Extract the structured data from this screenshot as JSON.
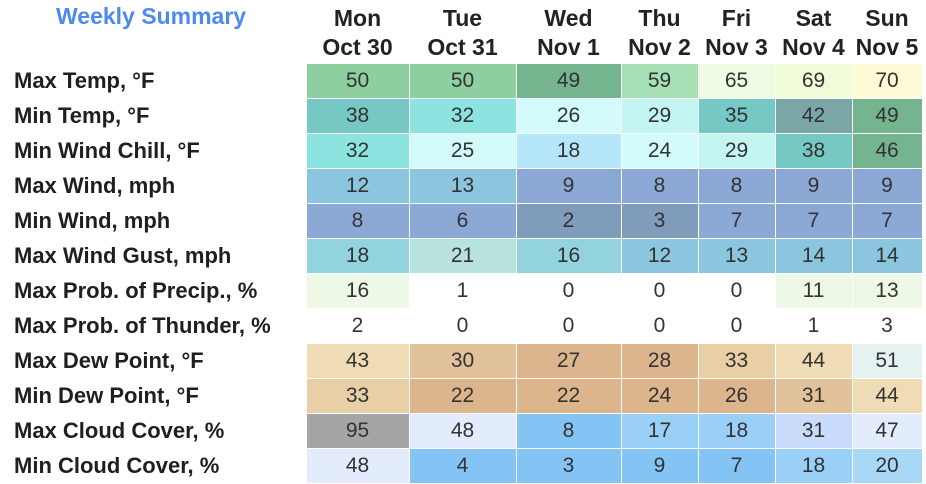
{
  "title": "Weekly Summary",
  "days": [
    {
      "dow": "Mon",
      "date": "Oct 30"
    },
    {
      "dow": "Tue",
      "date": "Oct 31"
    },
    {
      "dow": "Wed",
      "date": "Nov 1"
    },
    {
      "dow": "Thu",
      "date": "Nov 2"
    },
    {
      "dow": "Fri",
      "date": "Nov 3"
    },
    {
      "dow": "Sat",
      "date": "Nov 4"
    },
    {
      "dow": "Sun",
      "date": "Nov 5"
    }
  ],
  "rows": [
    {
      "label": "Max Temp, °F",
      "values": [
        "50",
        "50",
        "49",
        "59",
        "65",
        "69",
        "70"
      ],
      "colors": [
        "#8ecfa0",
        "#8ecfa0",
        "#74b48e",
        "#a6e0b4",
        "#edfbe2",
        "#f0fbd8",
        "#fdfbd6"
      ]
    },
    {
      "label": "Min Temp, °F",
      "values": [
        "38",
        "32",
        "26",
        "29",
        "35",
        "42",
        "49"
      ],
      "colors": [
        "#76c8c4",
        "#8de3df",
        "#d3fbfb",
        "#c3f6f3",
        "#76c8c4",
        "#7aa6a6",
        "#74b48e"
      ]
    },
    {
      "label": "Min Wind Chill, °F",
      "values": [
        "32",
        "25",
        "18",
        "24",
        "29",
        "38",
        "46"
      ],
      "colors": [
        "#8de3df",
        "#d3fbfb",
        "#b5e6f9",
        "#d3fbfb",
        "#c3f6f3",
        "#76c8c4",
        "#74b48e"
      ]
    },
    {
      "label": "Max Wind, mph",
      "values": [
        "12",
        "13",
        "9",
        "8",
        "8",
        "9",
        "9"
      ],
      "colors": [
        "#8bc6de",
        "#8bc6de",
        "#8ca8d4",
        "#8ca8d4",
        "#8ca8d4",
        "#8ca8d4",
        "#8ca8d4"
      ]
    },
    {
      "label": "Min Wind, mph",
      "values": [
        "8",
        "6",
        "2",
        "3",
        "7",
        "7",
        "7"
      ],
      "colors": [
        "#8ca8d4",
        "#8ca8d4",
        "#7f9cbb",
        "#7f9cbb",
        "#8ca8d4",
        "#8ca8d4",
        "#8ca8d4"
      ]
    },
    {
      "label": "Max Wind Gust, mph",
      "values": [
        "18",
        "21",
        "16",
        "12",
        "13",
        "14",
        "14"
      ],
      "colors": [
        "#92d3dd",
        "#b7e3dc",
        "#92d3dd",
        "#8bc6de",
        "#8bc6de",
        "#8bc6de",
        "#8bc6de"
      ]
    },
    {
      "label": "Max Prob. of Precip., %",
      "values": [
        "16",
        "1",
        "0",
        "0",
        "0",
        "11",
        "13"
      ],
      "colors": [
        "#eef8e6",
        "#ffffff",
        "#ffffff",
        "#ffffff",
        "#ffffff",
        "#eef8e6",
        "#eef8e6"
      ]
    },
    {
      "label": "Max Prob. of Thunder, %",
      "values": [
        "2",
        "0",
        "0",
        "0",
        "0",
        "1",
        "3"
      ],
      "colors": [
        "#ffffff",
        "#ffffff",
        "#ffffff",
        "#ffffff",
        "#ffffff",
        "#ffffff",
        "#ffffff"
      ]
    },
    {
      "label": "Max Dew Point, °F",
      "values": [
        "43",
        "30",
        "27",
        "28",
        "33",
        "44",
        "51"
      ],
      "colors": [
        "#efdcb6",
        "#e2c29a",
        "#dcb58c",
        "#dcb58c",
        "#e8cfa6",
        "#efdcb6",
        "#e6f1f2"
      ]
    },
    {
      "label": "Min Dew Point, °F",
      "values": [
        "33",
        "22",
        "22",
        "24",
        "26",
        "31",
        "44"
      ],
      "colors": [
        "#e8cfa6",
        "#dcb58c",
        "#dcb58c",
        "#dcb58c",
        "#dcb58c",
        "#e2c29a",
        "#efdcb6"
      ]
    },
    {
      "label": "Max Cloud Cover, %",
      "values": [
        "95",
        "48",
        "8",
        "17",
        "18",
        "31",
        "47"
      ],
      "colors": [
        "#a5a5a5",
        "#e3ecfd",
        "#84c4f4",
        "#9ad0f7",
        "#9ad0f7",
        "#c9dcfc",
        "#e3ecfd"
      ]
    },
    {
      "label": "Min Cloud Cover, %",
      "values": [
        "48",
        "4",
        "3",
        "9",
        "7",
        "18",
        "20"
      ],
      "colors": [
        "#e3ecfd",
        "#84c4f4",
        "#84c4f4",
        "#84c4f4",
        "#84c4f4",
        "#9ad0f7",
        "#a9d8f7"
      ]
    }
  ]
}
